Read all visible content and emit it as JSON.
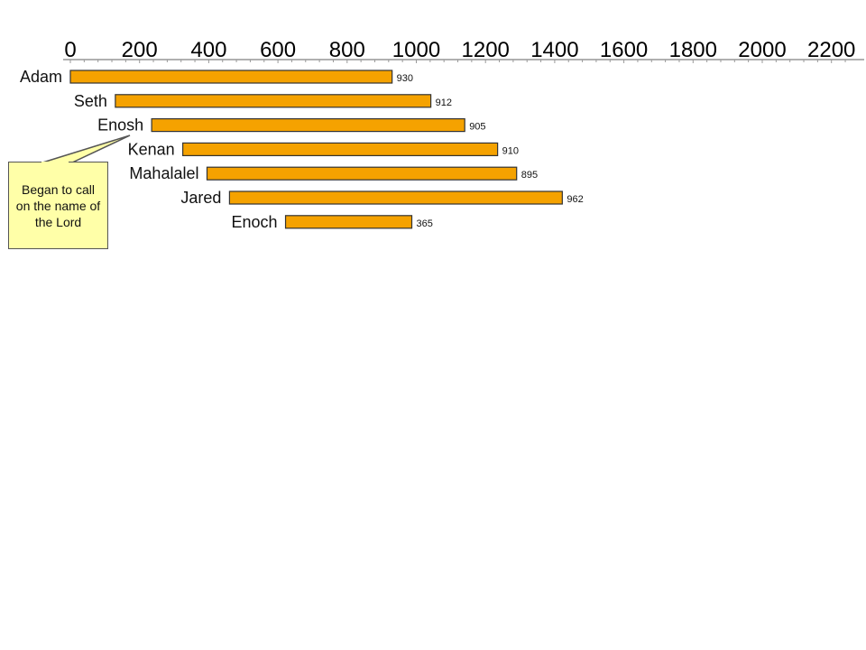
{
  "chart_data": {
    "type": "bar",
    "orientation": "horizontal",
    "x_axis_position": "top",
    "x_ticks": [
      "0",
      "200",
      "400",
      "600",
      "800",
      "1000",
      "1200",
      "1400",
      "1600",
      "1800",
      "2000",
      "2200"
    ],
    "xlim": [
      0,
      2250
    ],
    "bars": [
      {
        "name": "Adam",
        "start": 0,
        "end": 930,
        "value": 930,
        "label": "930"
      },
      {
        "name": "Seth",
        "start": 130,
        "end": 1042,
        "value": 912,
        "label": "912"
      },
      {
        "name": "Enosh",
        "start": 235,
        "end": 1140,
        "value": 905,
        "label": "905"
      },
      {
        "name": "Kenan",
        "start": 325,
        "end": 1235,
        "value": 910,
        "label": "910"
      },
      {
        "name": "Mahalalel",
        "start": 395,
        "end": 1290,
        "value": 895,
        "label": "895"
      },
      {
        "name": "Jared",
        "start": 460,
        "end": 1422,
        "value": 962,
        "label": "962"
      },
      {
        "name": "Enoch",
        "start": 622,
        "end": 987,
        "value": 365,
        "label": "365"
      }
    ],
    "bar_color": "#f5a200",
    "annotation": "Began to call on the name of the Lord"
  }
}
